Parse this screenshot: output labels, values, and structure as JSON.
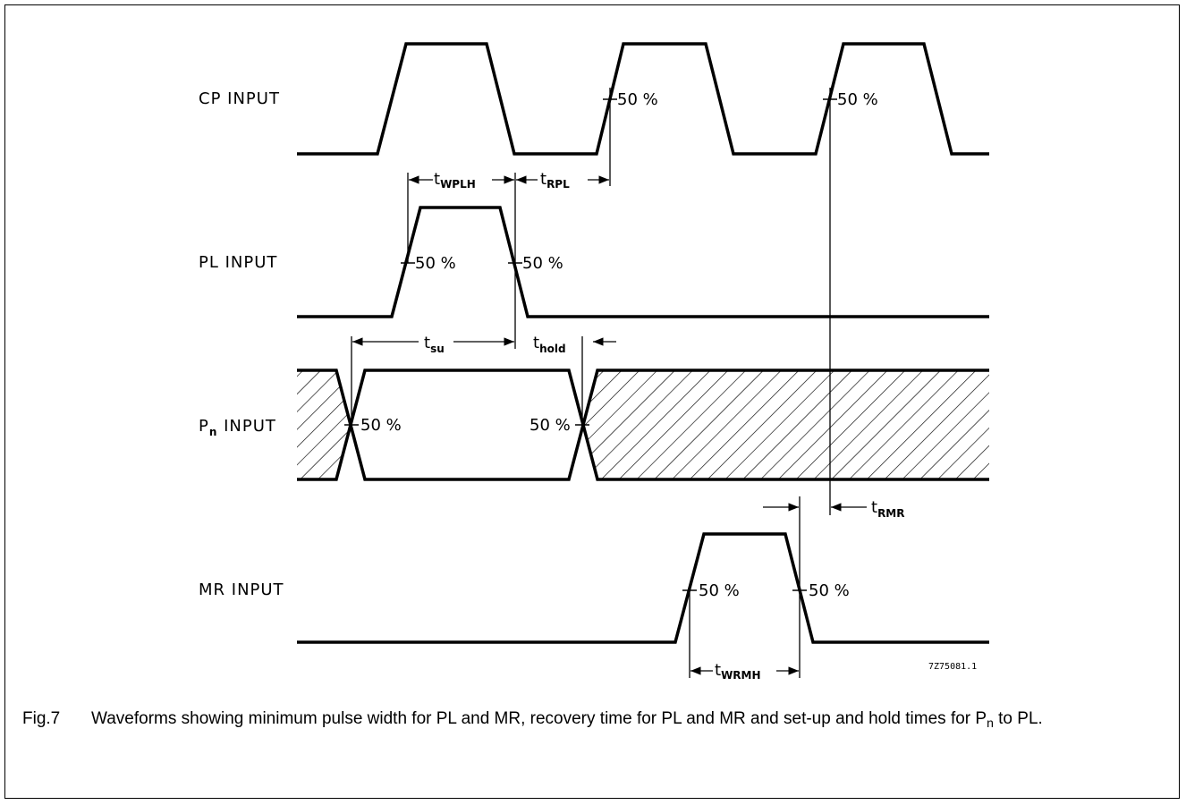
{
  "signals": {
    "cp": "CP INPUT",
    "pl": "PL INPUT",
    "pn_base": "P",
    "pn_sub": "n",
    "pn_rest": " INPUT",
    "mr": "MR INPUT"
  },
  "percent_label": "50 %",
  "timing": {
    "t": "t",
    "wplh": "WPLH",
    "rpl": "RPL",
    "su": "su",
    "hold": "hold",
    "rmr": "RMR",
    "wrmh": "WRMH"
  },
  "figure_code": "7Z75081.1",
  "caption": {
    "figure_number": "Fig.7",
    "text_before": "Waveforms showing minimum pulse width for PL and MR, recovery time for PL and MR and set-up and hold times for P",
    "subscript": "n",
    "text_after": " to PL."
  }
}
